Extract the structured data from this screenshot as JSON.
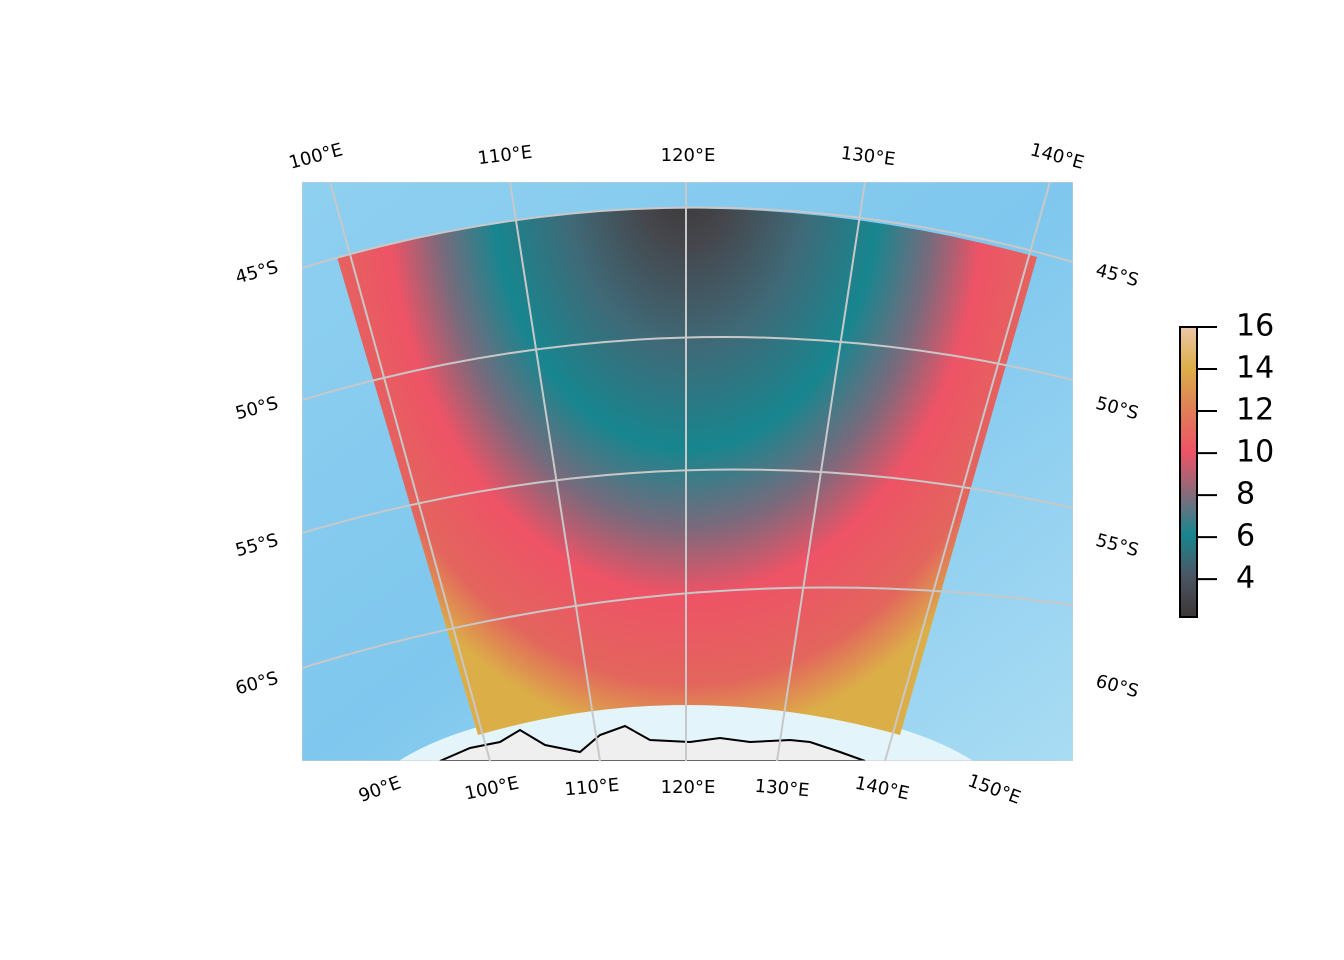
{
  "map": {
    "top_labels": [
      "100°E",
      "110°E",
      "120°E",
      "130°E",
      "140°E"
    ],
    "bottom_labels": [
      "90°E",
      "100°E",
      "110°E",
      "120°E",
      "130°E",
      "140°E",
      "150°E"
    ],
    "left_labels": [
      "45°S",
      "50°S",
      "55°S",
      "60°S"
    ],
    "right_labels": [
      "45°S",
      "50°S",
      "55°S",
      "60°S"
    ]
  },
  "colorbar": {
    "lim": [
      2.2,
      16
    ],
    "ticks": [
      4,
      6,
      8,
      10,
      12,
      14,
      16
    ],
    "colors": [
      "#3b3636",
      "#4b5663",
      "#17868f",
      "#8a6a7a",
      "#ee5366",
      "#e07e57",
      "#dcae48",
      "#ecc7a9"
    ]
  }
}
